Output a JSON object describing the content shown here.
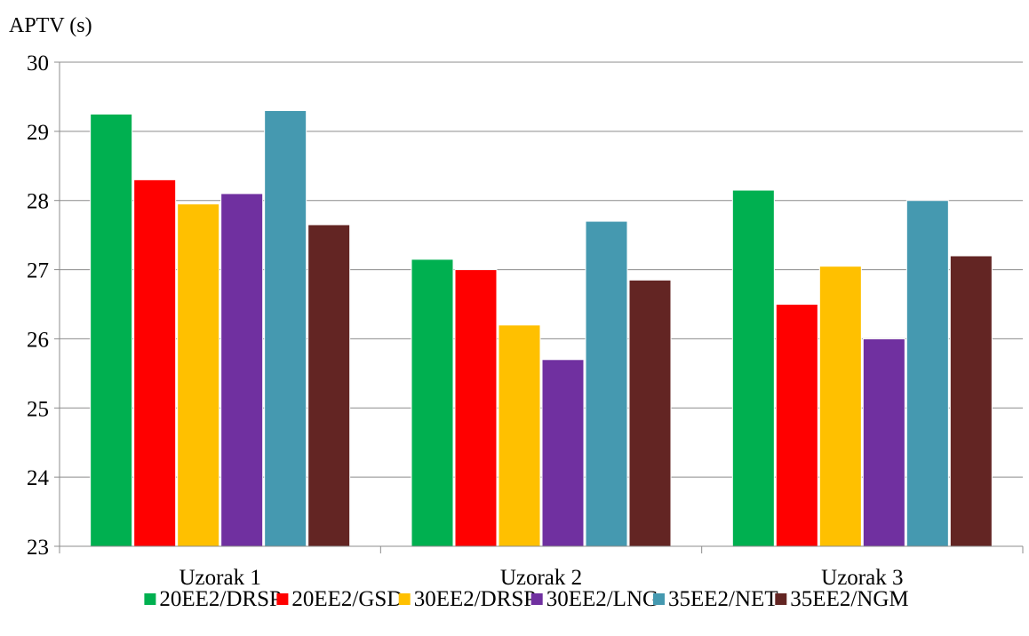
{
  "chart_data": {
    "type": "bar",
    "title": "",
    "ylabel": "APTV (s)",
    "xlabel": "",
    "categories": [
      "Uzorak 1",
      "Uzorak 2",
      "Uzorak 3"
    ],
    "ylim": [
      23,
      30
    ],
    "yticks": [
      "23",
      "24",
      "25",
      "26",
      "27",
      "28",
      "29",
      "30"
    ],
    "grid": true,
    "legend_position": "bottom",
    "series": [
      {
        "name": "20EE2/DRSP",
        "color": "#00B050",
        "values": [
          29.25,
          27.15,
          28.15
        ]
      },
      {
        "name": "20EE2/GSD",
        "color": "#FF0000",
        "values": [
          28.3,
          27.0,
          26.5
        ]
      },
      {
        "name": "30EE2/DRSP",
        "color": "#FFC000",
        "values": [
          27.95,
          26.2,
          27.05
        ]
      },
      {
        "name": "30EE2/LNG",
        "color": "#7030A0",
        "values": [
          28.1,
          25.7,
          26.0
        ]
      },
      {
        "name": "35EE2/NET",
        "color": "#4599B0",
        "values": [
          29.3,
          27.7,
          28.0
        ]
      },
      {
        "name": "35EE2/NGM",
        "color": "#632523",
        "values": [
          27.65,
          26.85,
          27.2
        ]
      }
    ]
  }
}
